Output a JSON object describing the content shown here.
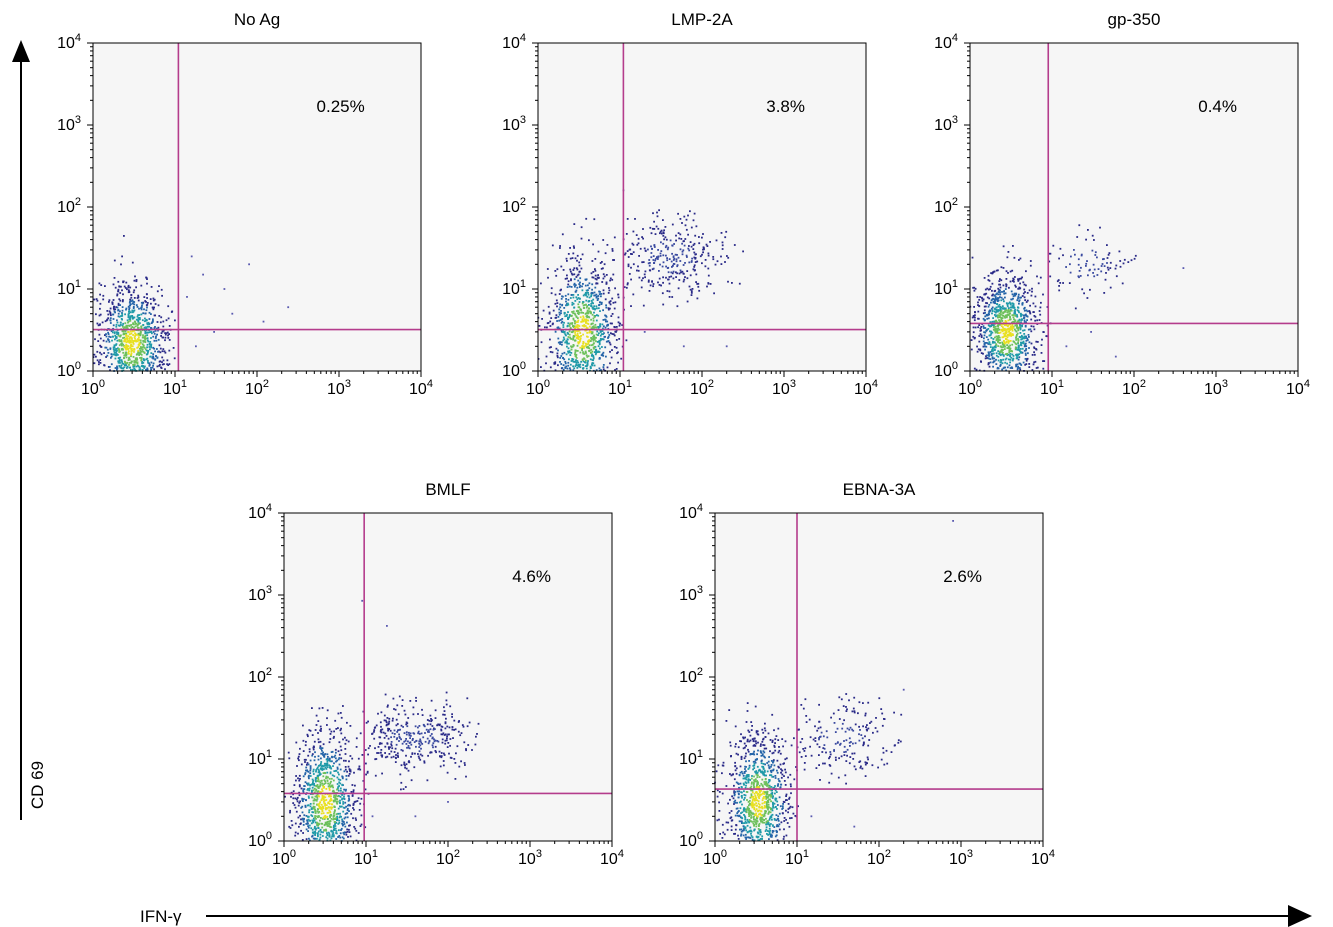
{
  "figure": {
    "ylabel": "CD 69",
    "xlabel": "IFN-γ"
  },
  "chart_data": [
    {
      "type": "scatter",
      "title": "No Ag",
      "xscale": "log",
      "yscale": "log",
      "xlim": [
        1,
        10000
      ],
      "ylim": [
        1,
        10000
      ],
      "gate": {
        "x": 11,
        "y": 3.2
      },
      "annotation": "0.25%",
      "populations": [
        {
          "role": "main cluster",
          "count": 900,
          "x_center": 3,
          "x_spread_log": 0.22,
          "y_center": 2.2,
          "y_spread_log": 0.35,
          "y_min": 1,
          "y_max": 45,
          "x_min": 1,
          "x_max": 10
        }
      ],
      "outliers": [
        [
          22,
          15
        ],
        [
          40,
          10
        ],
        [
          80,
          20
        ],
        [
          240,
          6
        ],
        [
          18,
          2
        ],
        [
          30,
          3
        ],
        [
          14,
          8
        ],
        [
          50,
          5
        ],
        [
          120,
          4
        ],
        [
          16,
          25
        ]
      ]
    },
    {
      "type": "scatter",
      "title": "LMP-2A",
      "xscale": "log",
      "yscale": "log",
      "xlim": [
        1,
        10000
      ],
      "ylim": [
        1,
        10000
      ],
      "gate": {
        "x": 11,
        "y": 3.2
      },
      "annotation": "3.8%",
      "populations": [
        {
          "role": "main cluster",
          "count": 900,
          "x_center": 3.5,
          "x_spread_log": 0.22,
          "y_center": 3,
          "y_spread_log": 0.45,
          "y_min": 1,
          "y_max": 80,
          "x_min": 1,
          "x_max": 12
        },
        {
          "role": "IFN-γ+ CD69+ tail",
          "count": 320,
          "x_center": 40,
          "x_spread_log": 0.38,
          "y_center": 25,
          "y_spread_log": 0.25,
          "y_min": 6,
          "y_max": 100,
          "x_min": 11,
          "x_max": 400
        }
      ],
      "outliers": [
        [
          11,
          160
        ],
        [
          20,
          3
        ],
        [
          60,
          2
        ],
        [
          200,
          2
        ]
      ]
    },
    {
      "type": "scatter",
      "title": "gp-350",
      "xscale": "log",
      "yscale": "log",
      "xlim": [
        1,
        10000
      ],
      "ylim": [
        1,
        10000
      ],
      "gate": {
        "x": 9,
        "y": 3.8
      },
      "annotation": "0.4%",
      "populations": [
        {
          "role": "main cluster",
          "count": 1000,
          "x_center": 2.8,
          "x_spread_log": 0.2,
          "y_center": 3,
          "y_spread_log": 0.35,
          "y_min": 1,
          "y_max": 60,
          "x_min": 1,
          "x_max": 10
        },
        {
          "role": "IFN-γ+ CD69+ tail",
          "count": 90,
          "x_center": 25,
          "x_spread_log": 0.35,
          "y_center": 20,
          "y_spread_log": 0.25,
          "y_min": 5,
          "y_max": 60,
          "x_min": 9,
          "x_max": 120
        }
      ],
      "outliers": [
        [
          400,
          18
        ],
        [
          15,
          2
        ],
        [
          30,
          3
        ],
        [
          60,
          1.5
        ]
      ]
    },
    {
      "type": "scatter",
      "title": "BMLF",
      "xscale": "log",
      "yscale": "log",
      "xlim": [
        1,
        10000
      ],
      "ylim": [
        1,
        10000
      ],
      "gate": {
        "x": 9.5,
        "y": 3.8
      },
      "annotation": "4.6%",
      "populations": [
        {
          "role": "main cluster",
          "count": 900,
          "x_center": 3.2,
          "x_spread_log": 0.2,
          "y_center": 3,
          "y_spread_log": 0.45,
          "y_min": 1,
          "y_max": 50,
          "x_min": 1,
          "x_max": 11
        },
        {
          "role": "IFN-γ+ CD69+ tail",
          "count": 360,
          "x_center": 40,
          "x_spread_log": 0.38,
          "y_center": 18,
          "y_spread_log": 0.22,
          "y_min": 4,
          "y_max": 70,
          "x_min": 10,
          "x_max": 250
        }
      ],
      "outliers": [
        [
          9,
          850
        ],
        [
          18,
          420
        ],
        [
          12,
          2
        ],
        [
          40,
          2
        ],
        [
          100,
          3
        ]
      ]
    },
    {
      "type": "scatter",
      "title": "EBNA-3A",
      "xscale": "log",
      "yscale": "log",
      "xlim": [
        1,
        10000
      ],
      "ylim": [
        1,
        10000
      ],
      "gate": {
        "x": 10,
        "y": 4.3
      },
      "annotation": "2.6%",
      "populations": [
        {
          "role": "main cluster",
          "count": 900,
          "x_center": 3.4,
          "x_spread_log": 0.2,
          "y_center": 3,
          "y_spread_log": 0.42,
          "y_min": 1,
          "y_max": 50,
          "x_min": 1,
          "x_max": 11
        },
        {
          "role": "IFN-γ+ CD69+ tail",
          "count": 190,
          "x_center": 35,
          "x_spread_log": 0.35,
          "y_center": 18,
          "y_spread_log": 0.25,
          "y_min": 5,
          "y_max": 70,
          "x_min": 10,
          "x_max": 200
        }
      ],
      "outliers": [
        [
          800,
          8000
        ],
        [
          200,
          70
        ],
        [
          15,
          2
        ],
        [
          50,
          1.5
        ]
      ]
    }
  ],
  "colors": {
    "plot_bg": "#f6f6f6",
    "frame": "#000000",
    "gate_line": "#b43c8c",
    "density_low": "#2a2a88",
    "density_mid": "#1f9aa8",
    "density_high": "#e8e020"
  }
}
